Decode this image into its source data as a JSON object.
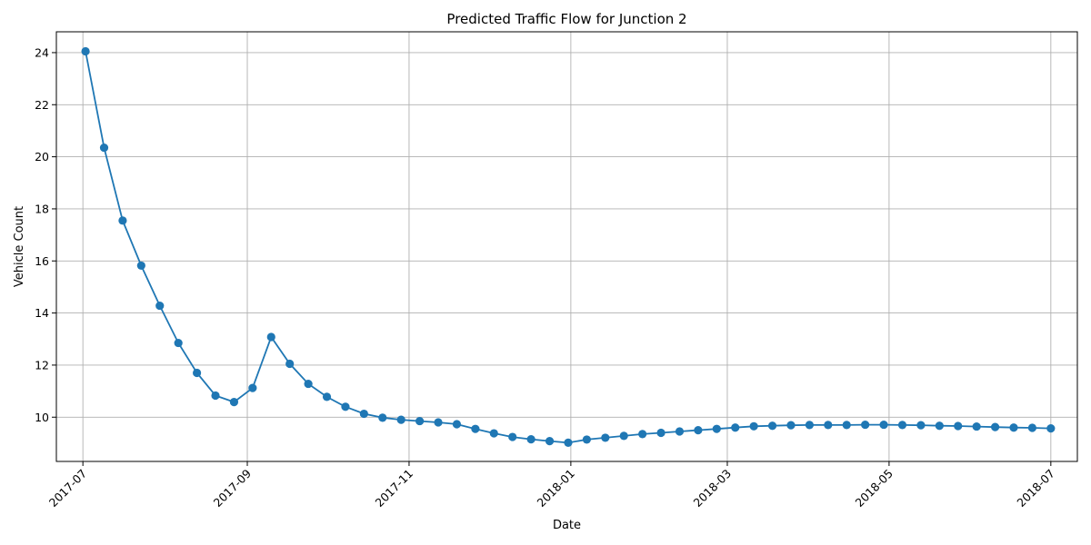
{
  "chart_data": {
    "type": "line",
    "title": "Predicted Traffic Flow for Junction 2",
    "xlabel": "Date",
    "ylabel": "Vehicle Count",
    "x_type": "date",
    "xlim": [
      "2017-06-21",
      "2018-07-11"
    ],
    "ylim": [
      8.3,
      24.8
    ],
    "x_ticks": [
      "2017-07-01",
      "2017-09-01",
      "2017-11-01",
      "2018-01-01",
      "2018-03-01",
      "2018-05-01",
      "2018-07-01"
    ],
    "x_tick_labels": [
      "2017-07",
      "2017-09",
      "2017-11",
      "2018-01",
      "2018-03",
      "2018-05",
      "2018-07"
    ],
    "y_ticks": [
      10,
      12,
      14,
      16,
      18,
      20,
      22,
      24
    ],
    "grid": true,
    "legend": null,
    "color": "#1f77b4",
    "series": [
      {
        "x": [
          "2017-07-02",
          "2017-07-09",
          "2017-07-16",
          "2017-07-23",
          "2017-07-30",
          "2017-08-06",
          "2017-08-13",
          "2017-08-20",
          "2017-08-27",
          "2017-09-03",
          "2017-09-10",
          "2017-09-17",
          "2017-09-24",
          "2017-10-01",
          "2017-10-08",
          "2017-10-15",
          "2017-10-22",
          "2017-10-29",
          "2017-11-05",
          "2017-11-12",
          "2017-11-19",
          "2017-11-26",
          "2017-12-03",
          "2017-12-10",
          "2017-12-17",
          "2017-12-24",
          "2017-12-31",
          "2018-01-07",
          "2018-01-14",
          "2018-01-21",
          "2018-01-28",
          "2018-02-04",
          "2018-02-11",
          "2018-02-18",
          "2018-02-25",
          "2018-03-04",
          "2018-03-11",
          "2018-03-18",
          "2018-03-25",
          "2018-04-01",
          "2018-04-08",
          "2018-04-15",
          "2018-04-22",
          "2018-04-29",
          "2018-05-06",
          "2018-05-13",
          "2018-05-20",
          "2018-05-27",
          "2018-06-03",
          "2018-06-10",
          "2018-06-17",
          "2018-06-24",
          "2018-07-01"
        ],
        "values": [
          24.05,
          20.35,
          17.55,
          15.82,
          14.28,
          12.85,
          11.7,
          10.83,
          10.58,
          11.12,
          13.08,
          12.05,
          11.28,
          10.78,
          10.4,
          10.13,
          9.98,
          9.9,
          9.85,
          9.8,
          9.73,
          9.55,
          9.38,
          9.24,
          9.15,
          9.08,
          9.02,
          9.14,
          9.21,
          9.28,
          9.35,
          9.4,
          9.45,
          9.5,
          9.55,
          9.6,
          9.65,
          9.67,
          9.69,
          9.7,
          9.7,
          9.7,
          9.71,
          9.71,
          9.7,
          9.69,
          9.67,
          9.66,
          9.64,
          9.62,
          9.6,
          9.59,
          9.57
        ]
      }
    ]
  }
}
